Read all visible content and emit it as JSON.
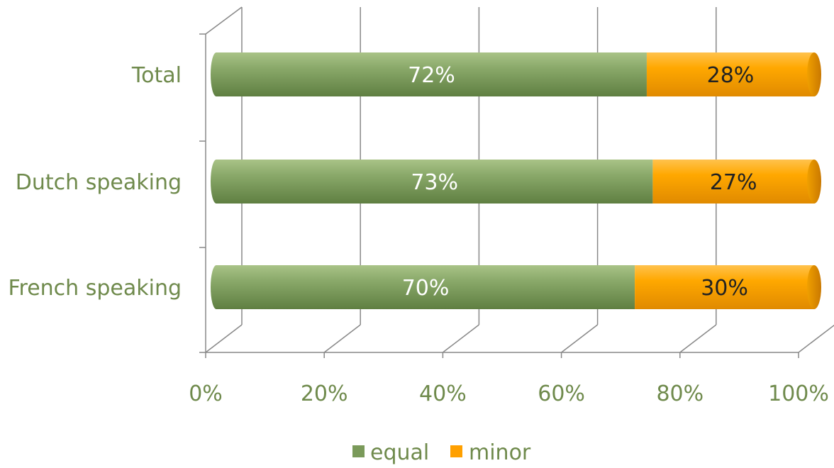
{
  "chart_data": {
    "type": "bar",
    "orientation": "horizontal",
    "stacked": true,
    "percent_stacked": true,
    "three_d": true,
    "categories": [
      "Total",
      "Dutch speaking",
      "French speaking"
    ],
    "series": [
      {
        "name": "equal",
        "values": [
          72,
          73,
          70
        ],
        "labels": [
          "72%",
          "73%",
          "70%"
        ],
        "color": "#7a9a5a",
        "label_color": "#ffffff"
      },
      {
        "name": "minor",
        "values": [
          28,
          27,
          30
        ],
        "labels": [
          "28%",
          "27%",
          "30%"
        ],
        "color": "#ffa000",
        "label_color": "#222222"
      }
    ],
    "x_ticks": [
      "0%",
      "20%",
      "40%",
      "60%",
      "80%",
      "100%"
    ],
    "xlim": [
      0,
      100
    ],
    "grid": true,
    "legend_position": "bottom",
    "colors": {
      "axis_text": "#6f8a4c",
      "grid": "#888888"
    }
  }
}
